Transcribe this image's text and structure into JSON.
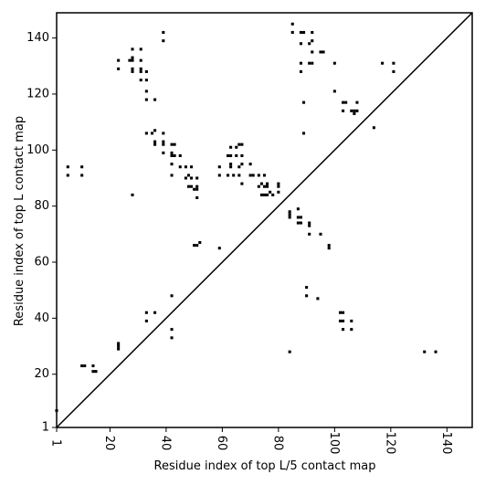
{
  "chart_data": {
    "type": "scatter",
    "title": "",
    "xlabel": "Residue index of top L/5 contact map",
    "ylabel": "Residue index of top L contact map",
    "xlim": [
      1,
      149
    ],
    "ylim": [
      1,
      149
    ],
    "x_ticks": [
      1,
      20,
      40,
      60,
      80,
      100,
      120,
      140
    ],
    "y_ticks": [
      1,
      20,
      40,
      60,
      80,
      100,
      120,
      140
    ],
    "x_tick_labels_rotated": true,
    "diagonal_line": true,
    "grid": false,
    "marker": "square",
    "marker_color": "#000000",
    "series": [
      {
        "points": [
          [
            1,
            7
          ],
          [
            5,
            91
          ],
          [
            5,
            94
          ],
          [
            10,
            91
          ],
          [
            10,
            94
          ],
          [
            10,
            23
          ],
          [
            11,
            23
          ],
          [
            14,
            23
          ],
          [
            14,
            21
          ],
          [
            15,
            21
          ],
          [
            23,
            29
          ],
          [
            23,
            30
          ],
          [
            23,
            31
          ],
          [
            23,
            129
          ],
          [
            23,
            132
          ],
          [
            27,
            132
          ],
          [
            28,
            132
          ],
          [
            28,
            84
          ],
          [
            28,
            128
          ],
          [
            28,
            129
          ],
          [
            28,
            133
          ],
          [
            28,
            136
          ],
          [
            31,
            125
          ],
          [
            31,
            128
          ],
          [
            31,
            129
          ],
          [
            31,
            132
          ],
          [
            31,
            136
          ],
          [
            33,
            118
          ],
          [
            33,
            121
          ],
          [
            33,
            125
          ],
          [
            33,
            128
          ],
          [
            33,
            106
          ],
          [
            33,
            42
          ],
          [
            33,
            39
          ],
          [
            35,
            106
          ],
          [
            36,
            103
          ],
          [
            36,
            102
          ],
          [
            36,
            107
          ],
          [
            36,
            118
          ],
          [
            36,
            42
          ],
          [
            39,
            99
          ],
          [
            39,
            103
          ],
          [
            39,
            102
          ],
          [
            39,
            106
          ],
          [
            39,
            139
          ],
          [
            39,
            142
          ],
          [
            42,
            91
          ],
          [
            42,
            95
          ],
          [
            42,
            98
          ],
          [
            42,
            102
          ],
          [
            42,
            99
          ],
          [
            43,
            102
          ],
          [
            43,
            98
          ],
          [
            42,
            48
          ],
          [
            42,
            36
          ],
          [
            42,
            33
          ],
          [
            45,
            98
          ],
          [
            45,
            94
          ],
          [
            47,
            94
          ],
          [
            47,
            90
          ],
          [
            48,
            87
          ],
          [
            48,
            91
          ],
          [
            49,
            87
          ],
          [
            49,
            94
          ],
          [
            49,
            90
          ],
          [
            51,
            90
          ],
          [
            51,
            86
          ],
          [
            51,
            87
          ],
          [
            51,
            83
          ],
          [
            50,
            86
          ],
          [
            51,
            66
          ],
          [
            50,
            66
          ],
          [
            52,
            67
          ],
          [
            59,
            65
          ],
          [
            59,
            91
          ],
          [
            59,
            94
          ],
          [
            62,
            91
          ],
          [
            62,
            98
          ],
          [
            63,
            98
          ],
          [
            63,
            101
          ],
          [
            63,
            94
          ],
          [
            63,
            95
          ],
          [
            64,
            91
          ],
          [
            65,
            98
          ],
          [
            65,
            101
          ],
          [
            66,
            102
          ],
          [
            66,
            91
          ],
          [
            66,
            94
          ],
          [
            67,
            88
          ],
          [
            67,
            95
          ],
          [
            67,
            98
          ],
          [
            67,
            102
          ],
          [
            70,
            91
          ],
          [
            70,
            95
          ],
          [
            71,
            91
          ],
          [
            73,
            87
          ],
          [
            73,
            91
          ],
          [
            74,
            88
          ],
          [
            74,
            84
          ],
          [
            75,
            84
          ],
          [
            75,
            87
          ],
          [
            75,
            91
          ],
          [
            76,
            84
          ],
          [
            76,
            87
          ],
          [
            76,
            88
          ],
          [
            77,
            85
          ],
          [
            78,
            84
          ],
          [
            80,
            85
          ],
          [
            80,
            87
          ],
          [
            80,
            88
          ],
          [
            84,
            28
          ],
          [
            84,
            76
          ],
          [
            84,
            77
          ],
          [
            84,
            78
          ],
          [
            85,
            142
          ],
          [
            85,
            145
          ],
          [
            87,
            74
          ],
          [
            87,
            76
          ],
          [
            87,
            79
          ],
          [
            88,
            74
          ],
          [
            88,
            76
          ],
          [
            88,
            128
          ],
          [
            88,
            131
          ],
          [
            88,
            138
          ],
          [
            88,
            142
          ],
          [
            89,
            142
          ],
          [
            89,
            106
          ],
          [
            89,
            117
          ],
          [
            90,
            48
          ],
          [
            90,
            51
          ],
          [
            91,
            70
          ],
          [
            91,
            73
          ],
          [
            91,
            74
          ],
          [
            91,
            131
          ],
          [
            92,
            131
          ],
          [
            91,
            138
          ],
          [
            92,
            135
          ],
          [
            92,
            139
          ],
          [
            92,
            142
          ],
          [
            94,
            47
          ],
          [
            95,
            70
          ],
          [
            95,
            135
          ],
          [
            96,
            135
          ],
          [
            98,
            65
          ],
          [
            98,
            66
          ],
          [
            100,
            121
          ],
          [
            100,
            131
          ],
          [
            102,
            42
          ],
          [
            102,
            39
          ],
          [
            103,
            42
          ],
          [
            103,
            39
          ],
          [
            103,
            36
          ],
          [
            103,
            114
          ],
          [
            103,
            117
          ],
          [
            104,
            117
          ],
          [
            106,
            36
          ],
          [
            106,
            39
          ],
          [
            106,
            114
          ],
          [
            107,
            114
          ],
          [
            107,
            113
          ],
          [
            108,
            114
          ],
          [
            108,
            117
          ],
          [
            114,
            108
          ],
          [
            117,
            131
          ],
          [
            121,
            128
          ],
          [
            121,
            131
          ],
          [
            132,
            28
          ],
          [
            136,
            28
          ]
        ]
      }
    ]
  }
}
